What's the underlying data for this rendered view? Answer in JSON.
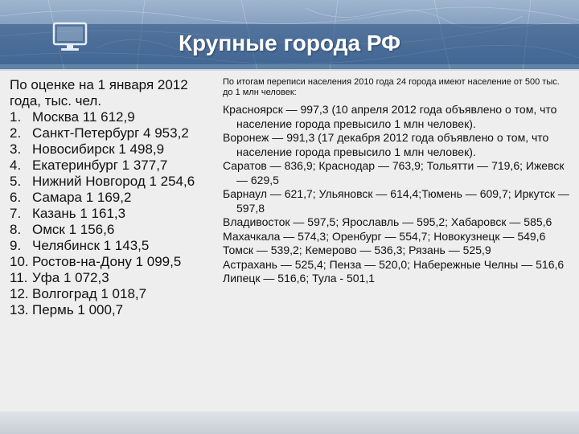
{
  "slide": {
    "title": "Крупные города РФ"
  },
  "left": {
    "intro": "По оценке на 1 января 2012 года, тыс. чел.",
    "items": [
      {
        "num": "1.",
        "text": "Москва 11 612,9"
      },
      {
        "num": "2.",
        "text": "Санкт-Петербург 4 953,2"
      },
      {
        "num": "3.",
        "text": "Новосибирск 1 498,9"
      },
      {
        "num": "4.",
        "text": "Екатеринбург 1 377,7"
      },
      {
        "num": "5.",
        "text": "Нижний Новгород 1 254,6"
      },
      {
        "num": "6.",
        "text": "Самара 1 169,2"
      },
      {
        "num": "7.",
        "text": "Казань 1 161,3"
      },
      {
        "num": "8.",
        "text": "Омск 1 156,6"
      },
      {
        "num": "9.",
        "text": "Челябинск 1 143,5"
      },
      {
        "num": "10.",
        "text": "Ростов-на-Дону 1 099,5"
      },
      {
        "num": "11.",
        "text": "Уфа 1 072,3"
      },
      {
        "num": "12.",
        "text": "Волгоград 1 018,7"
      },
      {
        "num": "13.",
        "text": "Пермь 1 000,7"
      }
    ]
  },
  "right": {
    "note": "По итогам переписи населения 2010 года 24 города имеют население от 500 тыс. до 1 млн человек:",
    "entries": [
      "Красноярск — 997,3 (10 апреля 2012 года объявлено о том, что население города превысило 1 млн человек).",
      "Воронеж — 991,3 (17 декабря 2012 года объявлено о том, что население города превысило 1 млн человек).",
      "Саратов — 836,9; Краснодар — 763,9; Тольятти — 719,6; Ижевск — 629,5",
      "Барнаул — 621,7; Ульяновск — 614,4;Тюмень — 609,7; Иркутск — 597,8",
      "Владивосток — 597,5; Ярославль — 595,2; Хабаровск — 585,6",
      "Махачкала — 574,3; Оренбург — 554,7; Новокузнецк — 549,6",
      "Томск — 539,2; Кемерово — 536,3; Рязань — 525,9",
      "Астрахань — 525,4; Пенза — 520,0; Набережные Челны — 516,6",
      "Липецк — 516,6; Тула - 501,1"
    ]
  },
  "colors": {
    "header_top": "#9fb6cf",
    "header_bottom": "#5e7fa5",
    "title_text": "#ffffff",
    "body_text": "#111111",
    "background": "#eeeeee"
  },
  "icons": {
    "header_icon": "monitor-icon",
    "header_background": "map-background"
  }
}
